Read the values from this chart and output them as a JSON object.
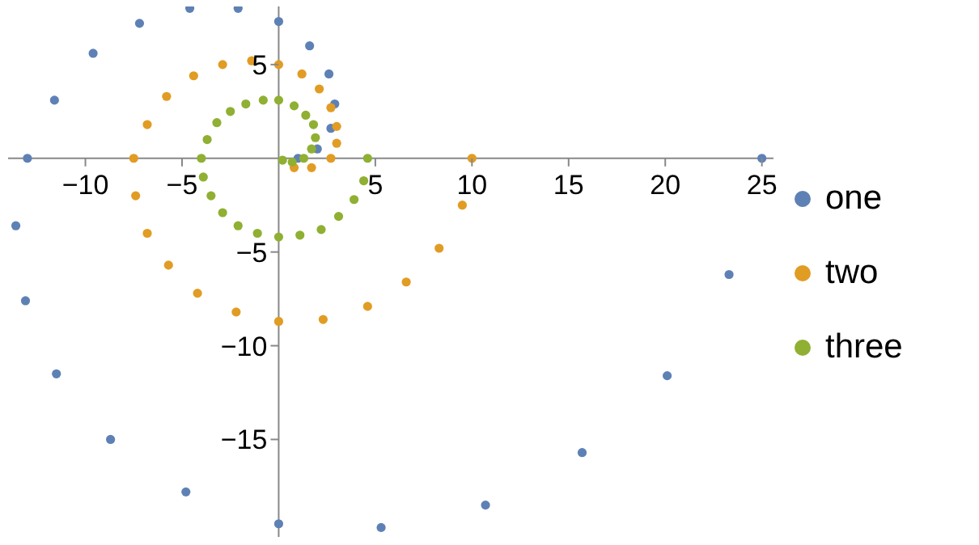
{
  "chart_data": {
    "type": "scatter",
    "marker": "circle",
    "legend": "right",
    "grid": false,
    "xlim": [
      -14,
      25.6
    ],
    "ylim": [
      -20.2,
      8.1
    ],
    "xticks": [
      -10,
      -5,
      5,
      10,
      15,
      20,
      25
    ],
    "yticks": [
      -15,
      -10,
      -5,
      5
    ],
    "series": [
      {
        "name": "one",
        "color": "#5e81b5",
        "x": [
          25,
          23.3,
          20.1,
          15.7,
          10.7,
          5.3,
          0,
          -4.8,
          -8.7,
          -11.5,
          -13.1,
          -13.6,
          -13,
          -11.6,
          -9.6,
          -7.2,
          -4.6,
          -2.1,
          0,
          1.6,
          2.6,
          2.9,
          2.7,
          2,
          1
        ],
        "values": [
          0,
          -6.2,
          -11.6,
          -15.7,
          -18.5,
          -19.7,
          -19.5,
          -17.8,
          -15,
          -11.5,
          -7.6,
          -3.6,
          0,
          3.1,
          5.6,
          7.2,
          8,
          8,
          7.3,
          6,
          4.5,
          2.9,
          1.6,
          0.5,
          0
        ]
      },
      {
        "name": "two",
        "color": "#e19c24",
        "x": [
          10,
          9.5,
          8.3,
          6.6,
          4.6,
          2.3,
          0,
          -2.2,
          -4.2,
          -5.7,
          -6.8,
          -7.4,
          -7.5,
          -6.8,
          -5.8,
          -4.4,
          -2.9,
          -1.4,
          0,
          1.2,
          2.1,
          2.7,
          3,
          3,
          2.7,
          1.7,
          0.8
        ],
        "values": [
          0,
          -2.5,
          -4.8,
          -6.6,
          -7.9,
          -8.6,
          -8.7,
          -8.2,
          -7.2,
          -5.7,
          -4,
          -2,
          0,
          1.8,
          3.3,
          4.4,
          5,
          5.2,
          5,
          4.5,
          3.7,
          2.7,
          1.7,
          0.8,
          0,
          -0.5,
          -0.5
        ]
      },
      {
        "name": "three",
        "color": "#8fb032",
        "x": [
          4.6,
          4.4,
          3.9,
          3.1,
          2.2,
          1.1,
          0,
          -1.1,
          -2.1,
          -2.9,
          -3.5,
          -3.9,
          -4,
          -3.7,
          -3.2,
          -2.5,
          -1.7,
          -0.8,
          0,
          0.8,
          1.4,
          1.8,
          1.9,
          1.7,
          1.3,
          0.7,
          0.2
        ],
        "values": [
          0,
          -1.2,
          -2.2,
          -3.1,
          -3.8,
          -4.1,
          -4.2,
          -4,
          -3.6,
          -2.9,
          -2,
          -1,
          0,
          1,
          1.9,
          2.5,
          2.9,
          3.1,
          3.1,
          2.8,
          2.3,
          1.8,
          1.1,
          0.5,
          0,
          -0.2,
          -0.1
        ]
      }
    ]
  }
}
